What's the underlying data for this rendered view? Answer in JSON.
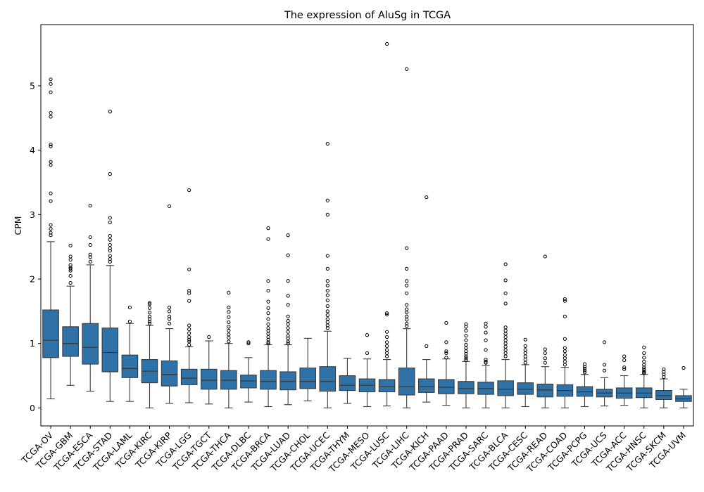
{
  "chart_data": {
    "type": "boxplot",
    "title": "The expression of AluSg in TCGA",
    "xlabel": "",
    "ylabel": "CPM",
    "ylim": [
      -0.28,
      5.95
    ],
    "yticks": [
      0,
      1,
      2,
      3,
      4,
      5
    ],
    "grid": false,
    "legend": "none",
    "box_color": "#2f72a8",
    "line_color": "#3a3a3a",
    "categories": [
      "TCGA-OV",
      "TCGA-GBM",
      "TCGA-ESCA",
      "TCGA-STAD",
      "TCGA-LAML",
      "TCGA-KIRC",
      "TCGA-KIRP",
      "TCGA-LGG",
      "TCGA-TGCT",
      "TCGA-THCA",
      "TCGA-DLBC",
      "TCGA-BRCA",
      "TCGA-LUAD",
      "TCGA-CHOL",
      "TCGA-UCEC",
      "TCGA-THYM",
      "TCGA-MESO",
      "TCGA-LUSC",
      "TCGA-LIHC",
      "TCGA-KICH",
      "TCGA-PAAD",
      "TCGA-PRAD",
      "TCGA-SARC",
      "TCGA-BLCA",
      "TCGA-CESC",
      "TCGA-READ",
      "TCGA-COAD",
      "TCGA-PCPG",
      "TCGA-UCS",
      "TCGA-ACC",
      "TCGA-HNSC",
      "TCGA-SKCM",
      "TCGA-UVM"
    ],
    "boxes": [
      {
        "whislo": 0.14,
        "q1": 0.78,
        "med": 1.05,
        "q3": 1.52,
        "whishi": 2.58,
        "fliers": [
          5.1,
          5.03,
          4.9,
          4.58,
          4.52,
          4.09,
          4.06,
          3.82,
          3.77,
          3.33,
          3.21,
          2.84,
          2.78,
          2.72,
          2.68
        ]
      },
      {
        "whislo": 0.35,
        "q1": 0.8,
        "med": 1.0,
        "q3": 1.26,
        "whishi": 1.89,
        "fliers": [
          2.52,
          2.35,
          2.3,
          2.22,
          2.18,
          2.16,
          2.13,
          2.05,
          1.94
        ]
      },
      {
        "whislo": 0.26,
        "q1": 0.68,
        "med": 0.94,
        "q3": 1.31,
        "whishi": 2.22,
        "fliers": [
          3.14,
          2.65,
          2.53,
          2.38,
          2.34,
          2.27
        ]
      },
      {
        "whislo": 0.1,
        "q1": 0.56,
        "med": 0.86,
        "q3": 1.24,
        "whishi": 2.21,
        "fliers": [
          4.6,
          3.63,
          2.95,
          2.88,
          2.67,
          2.61,
          2.53,
          2.48,
          2.44,
          2.36,
          2.31,
          2.27
        ]
      },
      {
        "whislo": 0.1,
        "q1": 0.47,
        "med": 0.61,
        "q3": 0.82,
        "whishi": 1.31,
        "fliers": [
          1.56,
          1.34
        ]
      },
      {
        "whislo": 0.0,
        "q1": 0.39,
        "med": 0.57,
        "q3": 0.75,
        "whishi": 1.28,
        "fliers": [
          1.63,
          1.61,
          1.55,
          1.48,
          1.42,
          1.38,
          1.34,
          1.31
        ]
      },
      {
        "whislo": 0.07,
        "q1": 0.34,
        "med": 0.52,
        "q3": 0.73,
        "whishi": 1.23,
        "fliers": [
          3.13,
          1.56,
          1.5,
          1.42,
          1.38,
          1.31
        ]
      },
      {
        "whislo": 0.08,
        "q1": 0.36,
        "med": 0.46,
        "q3": 0.6,
        "whishi": 0.95,
        "fliers": [
          3.38,
          2.15,
          1.82,
          1.78,
          1.66,
          1.28,
          1.22,
          1.16,
          1.1,
          1.06,
          1.03,
          0.98
        ]
      },
      {
        "whislo": 0.06,
        "q1": 0.29,
        "med": 0.43,
        "q3": 0.6,
        "whishi": 1.04,
        "fliers": [
          1.1
        ]
      },
      {
        "whislo": 0.0,
        "q1": 0.29,
        "med": 0.43,
        "q3": 0.58,
        "whishi": 1.0,
        "fliers": [
          1.79,
          1.56,
          1.49,
          1.41,
          1.33,
          1.26,
          1.2,
          1.14,
          1.09,
          1.03
        ]
      },
      {
        "whislo": 0.09,
        "q1": 0.31,
        "med": 0.42,
        "q3": 0.51,
        "whishi": 0.78,
        "fliers": [
          1.02,
          1.0
        ]
      },
      {
        "whislo": 0.02,
        "q1": 0.29,
        "med": 0.41,
        "q3": 0.58,
        "whishi": 0.98,
        "fliers": [
          2.79,
          2.62,
          1.97,
          1.82,
          1.65,
          1.55,
          1.47,
          1.38,
          1.3,
          1.24,
          1.2,
          1.15,
          1.1,
          1.06,
          1.02,
          1.0
        ]
      },
      {
        "whislo": 0.05,
        "q1": 0.28,
        "med": 0.41,
        "q3": 0.56,
        "whishi": 0.98,
        "fliers": [
          2.68,
          2.37,
          1.97,
          1.74,
          1.6,
          1.42,
          1.35,
          1.3,
          1.24,
          1.18,
          1.12,
          1.08,
          1.03,
          1.0
        ]
      },
      {
        "whislo": 0.11,
        "q1": 0.3,
        "med": 0.41,
        "q3": 0.62,
        "whishi": 1.08,
        "fliers": []
      },
      {
        "whislo": 0.0,
        "q1": 0.26,
        "med": 0.41,
        "q3": 0.64,
        "whishi": 1.19,
        "fliers": [
          4.1,
          3.22,
          3.0,
          2.36,
          2.16,
          1.97,
          1.9,
          1.82,
          1.75,
          1.67,
          1.58,
          1.5,
          1.44,
          1.38,
          1.33,
          1.28,
          1.24
        ]
      },
      {
        "whislo": 0.07,
        "q1": 0.27,
        "med": 0.35,
        "q3": 0.5,
        "whishi": 0.77,
        "fliers": []
      },
      {
        "whislo": 0.02,
        "q1": 0.25,
        "med": 0.35,
        "q3": 0.45,
        "whishi": 0.76,
        "fliers": [
          1.13,
          0.85
        ]
      },
      {
        "whislo": 0.03,
        "q1": 0.25,
        "med": 0.33,
        "q3": 0.44,
        "whishi": 0.75,
        "fliers": [
          5.65,
          1.47,
          1.45,
          1.18,
          1.1,
          1.02,
          0.96,
          0.9,
          0.85,
          0.8
        ]
      },
      {
        "whislo": 0.0,
        "q1": 0.2,
        "med": 0.33,
        "q3": 0.62,
        "whishi": 1.23,
        "fliers": [
          5.26,
          2.48,
          2.16,
          1.97,
          1.9,
          1.78,
          1.6,
          1.53,
          1.48,
          1.42,
          1.37,
          1.31,
          1.27
        ]
      },
      {
        "whislo": 0.09,
        "q1": 0.24,
        "med": 0.33,
        "q3": 0.45,
        "whishi": 0.75,
        "fliers": [
          3.27,
          0.96
        ]
      },
      {
        "whislo": 0.04,
        "q1": 0.22,
        "med": 0.32,
        "q3": 0.44,
        "whishi": 0.76,
        "fliers": [
          1.32,
          1.02,
          0.88,
          0.85,
          0.78
        ]
      },
      {
        "whislo": 0.0,
        "q1": 0.22,
        "med": 0.3,
        "q3": 0.41,
        "whishi": 0.72,
        "fliers": [
          1.3,
          1.26,
          1.2,
          1.12,
          1.05,
          0.98,
          0.93,
          0.88,
          0.84,
          0.8,
          0.77,
          0.74
        ]
      },
      {
        "whislo": 0.0,
        "q1": 0.21,
        "med": 0.3,
        "q3": 0.4,
        "whishi": 0.66,
        "fliers": [
          1.31,
          1.26,
          1.17,
          1.05,
          0.9,
          0.75,
          0.72,
          0.7
        ]
      },
      {
        "whislo": 0.0,
        "q1": 0.19,
        "med": 0.29,
        "q3": 0.42,
        "whishi": 0.75,
        "fliers": [
          2.23,
          1.98,
          1.78,
          1.62,
          1.25,
          1.2,
          1.15,
          1.1,
          1.05,
          1.0,
          0.95,
          0.9,
          0.85,
          0.8
        ]
      },
      {
        "whislo": 0.02,
        "q1": 0.21,
        "med": 0.29,
        "q3": 0.39,
        "whishi": 0.67,
        "fliers": [
          1.06,
          0.96,
          0.9,
          0.85,
          0.8,
          0.75,
          0.7
        ]
      },
      {
        "whislo": 0.0,
        "q1": 0.17,
        "med": 0.28,
        "q3": 0.37,
        "whishi": 0.64,
        "fliers": [
          2.35,
          0.91,
          0.85,
          0.77,
          0.7
        ]
      },
      {
        "whislo": 0.0,
        "q1": 0.18,
        "med": 0.27,
        "q3": 0.36,
        "whishi": 0.63,
        "fliers": [
          1.69,
          1.66,
          1.42,
          1.07,
          0.93,
          0.88,
          0.82,
          0.77,
          0.72,
          0.67
        ]
      },
      {
        "whislo": 0.02,
        "q1": 0.18,
        "med": 0.25,
        "q3": 0.33,
        "whishi": 0.52,
        "fliers": [
          0.68,
          0.64,
          0.61,
          0.58,
          0.55
        ]
      },
      {
        "whislo": 0.03,
        "q1": 0.17,
        "med": 0.23,
        "q3": 0.29,
        "whishi": 0.47,
        "fliers": [
          1.02,
          0.67,
          0.58
        ]
      },
      {
        "whislo": 0.04,
        "q1": 0.15,
        "med": 0.23,
        "q3": 0.31,
        "whishi": 0.5,
        "fliers": [
          0.8,
          0.74,
          0.63,
          0.6
        ]
      },
      {
        "whislo": 0.0,
        "q1": 0.16,
        "med": 0.23,
        "q3": 0.31,
        "whishi": 0.52,
        "fliers": [
          0.94,
          0.85,
          0.78,
          0.72,
          0.67,
          0.63,
          0.6,
          0.57,
          0.55,
          0.54
        ]
      },
      {
        "whislo": 0.0,
        "q1": 0.13,
        "med": 0.19,
        "q3": 0.27,
        "whishi": 0.45,
        "fliers": [
          0.6,
          0.56,
          0.52,
          0.48
        ]
      },
      {
        "whislo": 0.0,
        "q1": 0.1,
        "med": 0.14,
        "q3": 0.19,
        "whishi": 0.29,
        "fliers": [
          0.62
        ]
      }
    ]
  }
}
